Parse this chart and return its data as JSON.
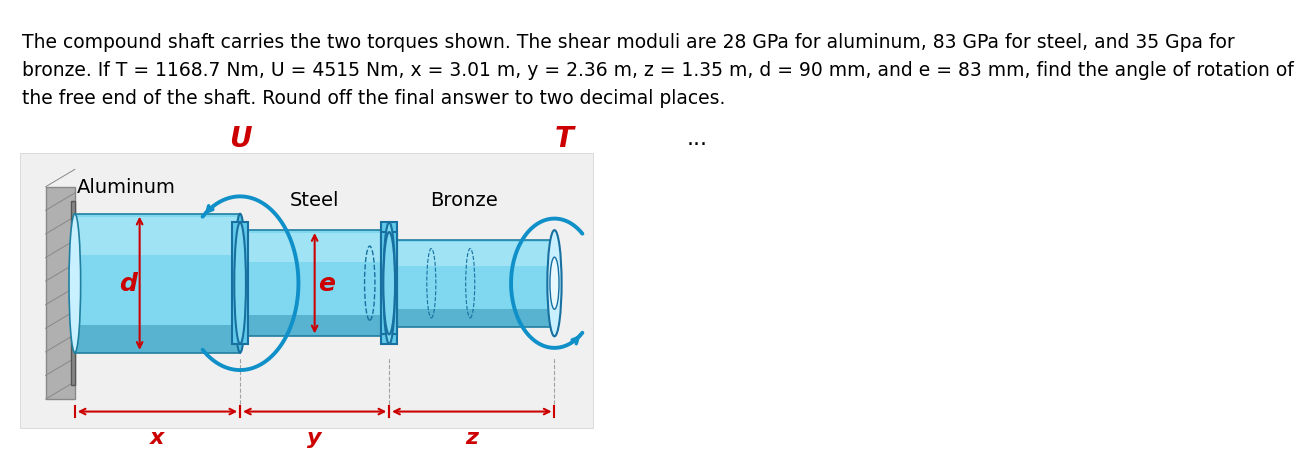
{
  "title_text": "The compound shaft carries the two torques shown. The shear moduli are 28 GPa for aluminum, 83 GPa for steel, and 35 Gpa for\nbronze. If T = 1168.7 Nm, U = 4515 Nm, x = 3.01 m, y = 2.36 m, z = 1.35 m, d = 90 mm, and e = 83 mm, find the angle of rotation of\nthe free end of the shaft. Round off the final answer to two decimal places.",
  "bg_color": "#ffffff",
  "panel_bg": "#f0f0f0",
  "label_aluminum": "Aluminum",
  "label_steel": "Steel",
  "label_bronze": "Bronze",
  "label_U": "U",
  "label_T": "T",
  "label_d": "d",
  "label_e": "e",
  "label_x": "x",
  "label_y": "y",
  "label_z": "z",
  "dots": "...",
  "shaft_color_light": "#7fd8f0",
  "shaft_color_mid": "#40b8e0",
  "shaft_color_dark": "#1890b8",
  "wall_color": "#c0c0c0",
  "wall_dark": "#888888",
  "torque_arrow_color": "#1090c8",
  "dim_color": "#cc0000",
  "text_color": "#000000",
  "title_fontsize": 13.5,
  "label_fontsize": 14,
  "dim_label_fontsize": 16
}
